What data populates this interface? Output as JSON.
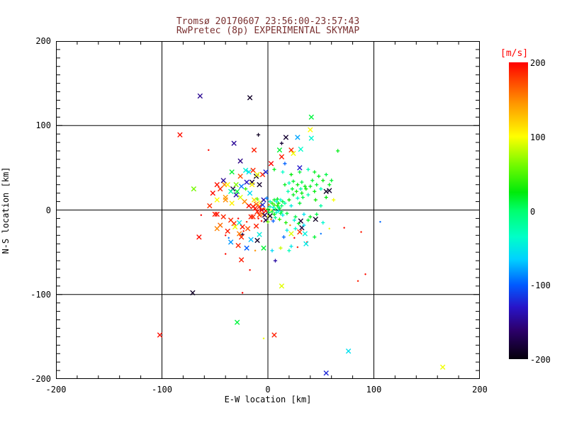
{
  "title": {
    "line1": "Tromsø 20170607 23:56:00-23:57:43",
    "line2": "RwPretec (8p) EXPERIMENTAL SKYMAP",
    "color": "#7a3030"
  },
  "chart_data": {
    "type": "scatter",
    "xlabel": "E-W location [km]",
    "ylabel": "N-S location [km]",
    "xlim": [
      -200,
      200
    ],
    "ylim": [
      -200,
      200
    ],
    "x_ticks": [
      -200,
      -100,
      0,
      100,
      200
    ],
    "y_ticks": [
      -200,
      -100,
      0,
      100,
      200
    ],
    "x_minor_step": 20,
    "y_minor_step": 10,
    "grid": true,
    "marker_legend": "each point [ew_km, ns_km, velocity_ms, marker] ; marker x=cross p=plus d=dot ; color encodes velocity via rainbow colorbar",
    "colorbar": {
      "label": "[m/s]",
      "label_color": "#ff0000",
      "ticks": [
        200,
        100,
        0,
        -100,
        -200
      ],
      "range": [
        -200,
        200
      ]
    },
    "points": [
      [
        -64,
        135,
        -148,
        "x"
      ],
      [
        -17,
        133,
        -188,
        "x"
      ],
      [
        41,
        110,
        12,
        "x"
      ],
      [
        -83,
        89,
        195,
        "x"
      ],
      [
        40,
        95,
        100,
        "x"
      ],
      [
        17,
        86,
        -185,
        "x"
      ],
      [
        28,
        86,
        -78,
        "x"
      ],
      [
        41,
        85,
        -40,
        "x"
      ],
      [
        -9,
        89,
        -190,
        "p"
      ],
      [
        13,
        79,
        -182,
        "p"
      ],
      [
        -32,
        79,
        -146,
        "x"
      ],
      [
        -13,
        71,
        190,
        "x"
      ],
      [
        -56,
        71,
        196,
        "d"
      ],
      [
        11,
        71,
        15,
        "x"
      ],
      [
        22,
        71,
        186,
        "x"
      ],
      [
        31,
        72,
        -36,
        "x"
      ],
      [
        24,
        67,
        96,
        "x"
      ],
      [
        13,
        63,
        191,
        "x"
      ],
      [
        66,
        70,
        22,
        "p"
      ],
      [
        3,
        55,
        199,
        "x"
      ],
      [
        16,
        55,
        -98,
        "p"
      ],
      [
        30,
        50,
        -128,
        "x"
      ],
      [
        -26,
        58,
        -152,
        "x"
      ],
      [
        -21,
        47,
        -44,
        "x"
      ],
      [
        -14,
        47,
        186,
        "x"
      ],
      [
        -11,
        40,
        -194,
        "x"
      ],
      [
        -5,
        42,
        189,
        "x"
      ],
      [
        -15,
        33,
        -181,
        "x"
      ],
      [
        -8,
        30,
        -186,
        "x"
      ],
      [
        -48,
        30,
        194,
        "x"
      ],
      [
        -41,
        30,
        152,
        "x"
      ],
      [
        -70,
        25,
        62,
        "x"
      ],
      [
        -40,
        12,
        148,
        "x"
      ],
      [
        55,
        22,
        -190,
        "x"
      ],
      [
        58,
        23,
        -184,
        "x"
      ],
      [
        62,
        12,
        98,
        "p"
      ],
      [
        -63,
        -6,
        199,
        "d"
      ],
      [
        -48,
        -5,
        195,
        "x"
      ],
      [
        -27,
        -15,
        -52,
        "x"
      ],
      [
        -11,
        -19,
        189,
        "x"
      ],
      [
        -65,
        -32,
        196,
        "x"
      ],
      [
        -8,
        -29,
        -46,
        "x"
      ],
      [
        -10,
        -36,
        -187,
        "x"
      ],
      [
        -37,
        -33,
        -92,
        "d"
      ],
      [
        -24,
        -29,
        -179,
        "p"
      ],
      [
        -40,
        -52,
        196,
        "d"
      ],
      [
        -25,
        -59,
        191,
        "x"
      ],
      [
        -17,
        -71,
        197,
        "d"
      ],
      [
        -24,
        -98,
        200,
        "d"
      ],
      [
        -71,
        -98,
        -189,
        "x"
      ],
      [
        -29,
        -133,
        12,
        "x"
      ],
      [
        -102,
        -148,
        196,
        "x"
      ],
      [
        -4,
        -152,
        95,
        "d"
      ],
      [
        6,
        -148,
        190,
        "x"
      ],
      [
        45,
        -11,
        -191,
        "x"
      ],
      [
        31,
        -13,
        -184,
        "x"
      ],
      [
        32,
        -21,
        -179,
        "x"
      ],
      [
        72,
        -21,
        196,
        "d"
      ],
      [
        88,
        -26,
        191,
        "d"
      ],
      [
        106,
        -14,
        -96,
        "d"
      ],
      [
        37,
        -38,
        195,
        "d"
      ],
      [
        22,
        -43,
        -52,
        "p"
      ],
      [
        7,
        -60,
        -142,
        "p"
      ],
      [
        92,
        -76,
        196,
        "d"
      ],
      [
        85,
        -84,
        190,
        "d"
      ],
      [
        13,
        -90,
        92,
        "x"
      ],
      [
        76,
        -167,
        -56,
        "x"
      ],
      [
        55,
        -193,
        -122,
        "x"
      ],
      [
        165,
        -186,
        96,
        "x"
      ],
      [
        -12,
        2,
        195,
        "x"
      ],
      [
        -10,
        -2,
        190,
        "x"
      ],
      [
        -8,
        4,
        185,
        "x"
      ],
      [
        -6,
        0,
        200,
        "x"
      ],
      [
        -5,
        -5,
        152,
        "x"
      ],
      [
        -3,
        2,
        148,
        "d"
      ],
      [
        -2,
        -1,
        192,
        "x"
      ],
      [
        0,
        1,
        20,
        "p"
      ],
      [
        1,
        -3,
        10,
        "p"
      ],
      [
        2,
        4,
        -20,
        "p"
      ],
      [
        3,
        0,
        100,
        "d"
      ],
      [
        4,
        -2,
        15,
        "p"
      ],
      [
        5,
        3,
        -45,
        "p"
      ],
      [
        6,
        -5,
        25,
        "p"
      ],
      [
        7,
        1,
        5,
        "p"
      ],
      [
        8,
        -3,
        -30,
        "p"
      ],
      [
        9,
        5,
        30,
        "p"
      ],
      [
        10,
        -1,
        -55,
        "p"
      ],
      [
        11,
        2,
        20,
        "p"
      ],
      [
        12,
        -4,
        10,
        "p"
      ],
      [
        -14,
        -8,
        186,
        "x"
      ],
      [
        -11,
        7,
        158,
        "x"
      ],
      [
        -9,
        -10,
        196,
        "d"
      ],
      [
        -7,
        9,
        102,
        "x"
      ],
      [
        -4,
        12,
        -138,
        "x"
      ],
      [
        -2,
        -12,
        -178,
        "x"
      ],
      [
        0,
        -8,
        90,
        "p"
      ],
      [
        2,
        10,
        -25,
        "p"
      ],
      [
        4,
        8,
        35,
        "p"
      ],
      [
        6,
        12,
        15,
        "p"
      ],
      [
        8,
        10,
        -40,
        "p"
      ],
      [
        10,
        8,
        25,
        "p"
      ],
      [
        13,
        5,
        0,
        "p"
      ],
      [
        14,
        -6,
        -50,
        "p"
      ],
      [
        -13,
        12,
        112,
        "x"
      ],
      [
        -6,
        -13,
        198,
        "d"
      ],
      [
        -1,
        14,
        -88,
        "p"
      ],
      [
        3,
        -11,
        168,
        "d"
      ],
      [
        7,
        -9,
        -15,
        "p"
      ],
      [
        11,
        -11,
        40,
        "p"
      ],
      [
        14,
        10,
        10,
        "p"
      ],
      [
        -10,
        13,
        55,
        "p"
      ],
      [
        -3,
        -6,
        -168,
        "x"
      ],
      [
        1,
        6,
        142,
        "d"
      ],
      [
        5,
        -13,
        -100,
        "p"
      ],
      [
        9,
        13,
        20,
        "p"
      ],
      [
        12,
        12,
        -35,
        "p"
      ],
      [
        -8,
        -6,
        176,
        "x"
      ],
      [
        -5,
        6,
        -118,
        "x"
      ],
      [
        13,
        -2,
        5,
        "p"
      ],
      [
        0,
        -14,
        60,
        "p"
      ],
      [
        -14,
        4,
        191,
        "x"
      ],
      [
        2,
        -7,
        -188,
        "x"
      ],
      [
        6,
        6,
        45,
        "p"
      ],
      [
        10,
        3,
        -10,
        "p"
      ],
      [
        16,
        8,
        -20,
        "p"
      ],
      [
        18,
        -4,
        15,
        "p"
      ],
      [
        20,
        12,
        25,
        "p"
      ],
      [
        22,
        5,
        -45,
        "p"
      ],
      [
        24,
        18,
        20,
        "p"
      ],
      [
        26,
        -8,
        10,
        "p"
      ],
      [
        28,
        14,
        -30,
        "p"
      ],
      [
        30,
        8,
        15,
        "p"
      ],
      [
        32,
        20,
        25,
        "p"
      ],
      [
        34,
        -5,
        -55,
        "p"
      ],
      [
        17,
        -15,
        35,
        "p"
      ],
      [
        19,
        22,
        -25,
        "p"
      ],
      [
        21,
        -18,
        150,
        "d"
      ],
      [
        23,
        25,
        15,
        "p"
      ],
      [
        25,
        -12,
        -40,
        "p"
      ],
      [
        27,
        22,
        30,
        "p"
      ],
      [
        29,
        -16,
        20,
        "p"
      ],
      [
        31,
        25,
        -20,
        "p"
      ],
      [
        33,
        15,
        10,
        "p"
      ],
      [
        35,
        28,
        25,
        "p"
      ],
      [
        -16,
        -8,
        190,
        "x"
      ],
      [
        -18,
        5,
        195,
        "x"
      ],
      [
        -20,
        -14,
        186,
        "d"
      ],
      [
        -22,
        10,
        150,
        "x"
      ],
      [
        -24,
        -20,
        191,
        "x"
      ],
      [
        -26,
        15,
        90,
        "x"
      ],
      [
        -28,
        -10,
        199,
        "d"
      ],
      [
        -30,
        18,
        -138,
        "x"
      ],
      [
        -32,
        -16,
        186,
        "x"
      ],
      [
        -34,
        8,
        106,
        "x"
      ],
      [
        -17,
        20,
        -60,
        "x"
      ],
      [
        -19,
        -22,
        172,
        "x"
      ],
      [
        -21,
        25,
        45,
        "p"
      ],
      [
        -23,
        -25,
        191,
        "d"
      ],
      [
        -25,
        28,
        -92,
        "x"
      ],
      [
        -27,
        -28,
        156,
        "x"
      ],
      [
        -29,
        22,
        15,
        "x"
      ],
      [
        -31,
        -20,
        95,
        "x"
      ],
      [
        -33,
        25,
        -176,
        "x"
      ],
      [
        -35,
        -12,
        186,
        "x"
      ],
      [
        16,
        30,
        20,
        "p"
      ],
      [
        20,
        32,
        -30,
        "p"
      ],
      [
        24,
        34,
        15,
        "p"
      ],
      [
        28,
        30,
        25,
        "p"
      ],
      [
        32,
        33,
        10,
        "p"
      ],
      [
        36,
        25,
        30,
        "p"
      ],
      [
        38,
        18,
        -25,
        "p"
      ],
      [
        40,
        28,
        20,
        "p"
      ],
      [
        42,
        35,
        15,
        "p"
      ],
      [
        44,
        22,
        25,
        "p"
      ],
      [
        18,
        -24,
        -50,
        "p"
      ],
      [
        22,
        -28,
        90,
        "x"
      ],
      [
        26,
        -22,
        -35,
        "p"
      ],
      [
        30,
        -26,
        182,
        "x"
      ],
      [
        34,
        -18,
        -60,
        "p"
      ],
      [
        38,
        -12,
        15,
        "p"
      ],
      [
        15,
        -32,
        -95,
        "p"
      ],
      [
        25,
        -33,
        199,
        "d"
      ],
      [
        35,
        -28,
        -45,
        "x"
      ],
      [
        40,
        -8,
        20,
        "p"
      ],
      [
        -15,
        30,
        106,
        "x"
      ],
      [
        -20,
        33,
        -130,
        "x"
      ],
      [
        -25,
        -32,
        186,
        "x"
      ],
      [
        -30,
        30,
        65,
        "x"
      ],
      [
        -35,
        22,
        -20,
        "x"
      ],
      [
        -38,
        -25,
        191,
        "x"
      ],
      [
        -40,
        15,
        142,
        "x"
      ],
      [
        -42,
        -8,
        186,
        "x"
      ],
      [
        -38,
        30,
        100,
        "x"
      ],
      [
        -16,
        -35,
        -70,
        "x"
      ],
      [
        46,
        30,
        15,
        "p"
      ],
      [
        48,
        40,
        20,
        "p"
      ],
      [
        50,
        25,
        -30,
        "p"
      ],
      [
        52,
        35,
        25,
        "p"
      ],
      [
        55,
        42,
        10,
        "p"
      ],
      [
        58,
        30,
        20,
        "p"
      ],
      [
        45,
        12,
        30,
        "p"
      ],
      [
        50,
        5,
        -20,
        "p"
      ],
      [
        55,
        15,
        25,
        "p"
      ],
      [
        60,
        35,
        15,
        "p"
      ],
      [
        46,
        -5,
        10,
        "p"
      ],
      [
        52,
        -15,
        -40,
        "p"
      ],
      [
        58,
        -22,
        95,
        "d"
      ],
      [
        44,
        45,
        20,
        "p"
      ],
      [
        38,
        48,
        -25,
        "p"
      ],
      [
        30,
        45,
        15,
        "p"
      ],
      [
        22,
        42,
        25,
        "p"
      ],
      [
        14,
        45,
        -35,
        "p"
      ],
      [
        6,
        48,
        20,
        "p"
      ],
      [
        -2,
        45,
        -122,
        "x"
      ],
      [
        -10,
        42,
        95,
        "x"
      ],
      [
        -18,
        45,
        -55,
        "x"
      ],
      [
        -26,
        40,
        172,
        "x"
      ],
      [
        -34,
        45,
        15,
        "x"
      ],
      [
        -42,
        35,
        -148,
        "x"
      ],
      [
        -45,
        25,
        186,
        "x"
      ],
      [
        -48,
        12,
        100,
        "x"
      ],
      [
        -50,
        -5,
        191,
        "x"
      ],
      [
        -45,
        -18,
        162,
        "x"
      ],
      [
        -40,
        -30,
        196,
        "d"
      ],
      [
        -35,
        -38,
        -82,
        "x"
      ],
      [
        -28,
        -42,
        186,
        "x"
      ],
      [
        -20,
        -45,
        -100,
        "x"
      ],
      [
        -12,
        -48,
        146,
        "d"
      ],
      [
        -4,
        -45,
        15,
        "x"
      ],
      [
        4,
        -48,
        -60,
        "p"
      ],
      [
        12,
        -45,
        85,
        "p"
      ],
      [
        20,
        -48,
        -30,
        "p"
      ],
      [
        28,
        -44,
        191,
        "d"
      ],
      [
        36,
        -40,
        -50,
        "x"
      ],
      [
        44,
        -32,
        15,
        "p"
      ],
      [
        50,
        -28,
        -92,
        "d"
      ],
      [
        -52,
        20,
        196,
        "x"
      ],
      [
        -55,
        5,
        182,
        "x"
      ],
      [
        -48,
        -22,
        152,
        "x"
      ]
    ]
  }
}
